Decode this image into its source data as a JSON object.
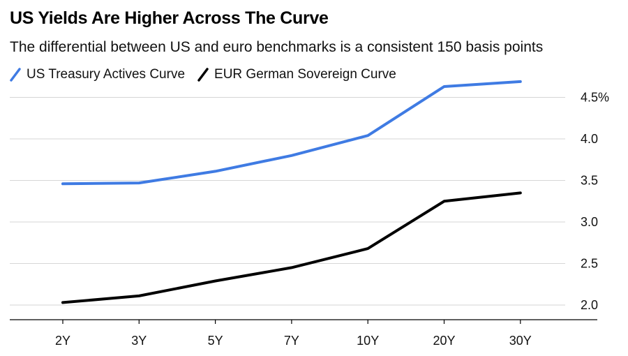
{
  "chart_data": {
    "type": "line",
    "title": "US Yields Are Higher Across The Curve",
    "subtitle": "The differential between US and euro benchmarks is a consistent 150 basis points",
    "xlabel": "",
    "ylabel": "",
    "categories": [
      "2Y",
      "3Y",
      "5Y",
      "7Y",
      "10Y",
      "20Y",
      "30Y"
    ],
    "series": [
      {
        "name": "US Treasury Actives Curve",
        "color": "#3f7be3",
        "values": [
          3.46,
          3.47,
          3.61,
          3.8,
          4.04,
          4.63,
          4.69
        ]
      },
      {
        "name": "EUR German Sovereign Curve",
        "color": "#000000",
        "values": [
          2.03,
          2.11,
          2.29,
          2.45,
          2.68,
          3.25,
          3.35
        ]
      }
    ],
    "ylim": [
      1.85,
      4.75
    ],
    "yticks": [
      2.0,
      2.5,
      3.0,
      3.5,
      4.0,
      4.5
    ],
    "ytick_labels": [
      "2.0",
      "2.5",
      "3.0",
      "3.5",
      "4.0",
      "4.5%"
    ],
    "y_axis_side": "right",
    "grid": true
  }
}
